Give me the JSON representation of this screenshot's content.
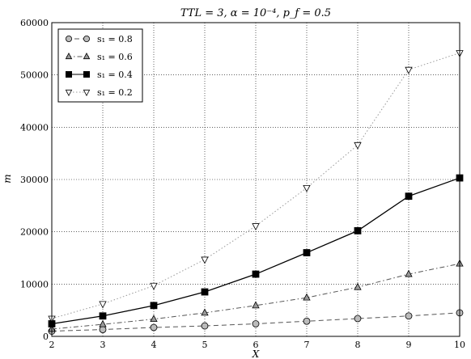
{
  "chart_data": {
    "type": "line",
    "title": "TTL = 3, α = 10⁻⁴, p_f = 0.5",
    "xlabel": "X",
    "ylabel": "m",
    "x": [
      2,
      3,
      4,
      5,
      6,
      7,
      8,
      9,
      10
    ],
    "xlim": [
      2,
      10
    ],
    "ylim": [
      0,
      60000
    ],
    "xticks": [
      "2",
      "3",
      "4",
      "5",
      "6",
      "7",
      "8",
      "9",
      "10"
    ],
    "yticks": [
      "0",
      "10000",
      "20000",
      "30000",
      "40000",
      "50000",
      "60000"
    ],
    "grid": true,
    "legend_position": "top-left",
    "series": [
      {
        "name": "s₁ = 0.8",
        "values": [
          1000,
          1300,
          1700,
          2000,
          2400,
          2900,
          3400,
          3900,
          4500
        ],
        "color": "#555555",
        "marker": "circle",
        "marker_fill": "#bbbbbb",
        "dash": "6,4"
      },
      {
        "name": "s₁ = 0.6",
        "values": [
          1400,
          2300,
          3300,
          4500,
          5900,
          7400,
          9400,
          11900,
          13900
        ],
        "color": "#555555",
        "marker": "triangle-up",
        "marker_fill": "#999999",
        "dash": "6,3,1.5,3"
      },
      {
        "name": "s₁ = 0.4",
        "values": [
          2400,
          3900,
          5900,
          8500,
          11900,
          16000,
          20200,
          26800,
          30300
        ],
        "color": "#000000",
        "marker": "square",
        "marker_fill": "#000000",
        "dash": ""
      },
      {
        "name": "s₁ = 0.2",
        "values": [
          3400,
          6200,
          9700,
          14700,
          21100,
          28400,
          36600,
          51000,
          54200
        ],
        "color": "#999999",
        "marker": "triangle-down",
        "marker_fill": "#ffffff",
        "dash": "1.5,2.5"
      }
    ]
  }
}
